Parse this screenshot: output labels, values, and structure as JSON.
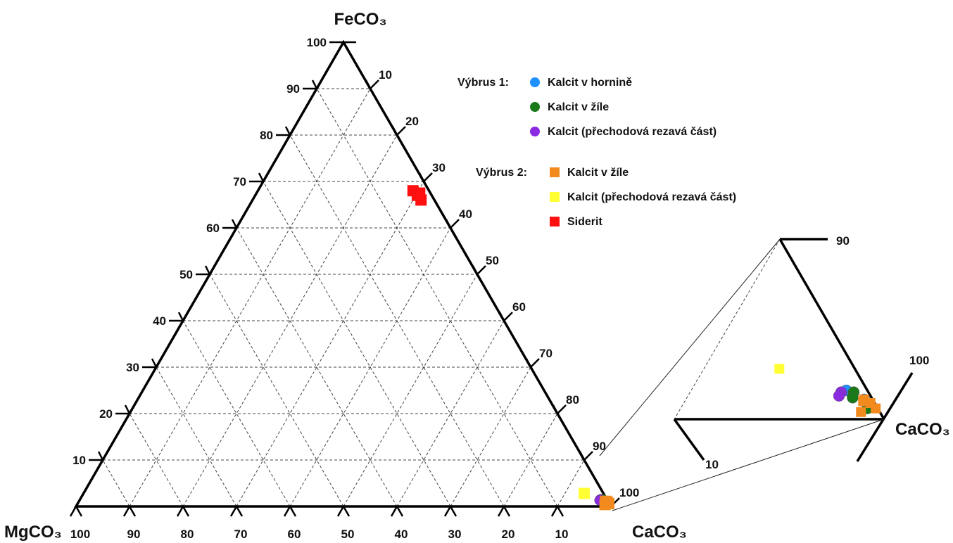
{
  "chart_data": {
    "type": "scatter",
    "subtype": "ternary",
    "vertices": {
      "top": "FeCO₃",
      "left": "MgCO₃",
      "right": "CaCO₃"
    },
    "ticks": [
      10,
      20,
      30,
      40,
      50,
      60,
      70,
      80,
      90,
      100
    ],
    "grid": true,
    "legend_position": "top-right",
    "legend_groups": [
      {
        "label": "Výbrus 1:",
        "entries": [
          "Kalcit v hornině",
          "Kalcit v žíle",
          "Kalcit (přechodová rezavá část)"
        ]
      },
      {
        "label": "Výbrus 2:",
        "entries": [
          "Kalcit v žíle",
          "Kalcit (přechodová rezavá část)",
          "Siderit"
        ]
      }
    ],
    "series": [
      {
        "name": "Kalcit v hornině",
        "group": "Výbrus 1:",
        "marker": "circle",
        "color": "#1e90ff",
        "points": [
          {
            "FeCO3": 1.6,
            "MgCO3": 1.0,
            "CaCO3": 97.4
          },
          {
            "FeCO3": 1.4,
            "MgCO3": 0.8,
            "CaCO3": 97.8
          },
          {
            "FeCO3": 1.1,
            "MgCO3": 0.4,
            "CaCO3": 98.5
          }
        ]
      },
      {
        "name": "Kalcit v žíle",
        "group": "Výbrus 1:",
        "marker": "circle",
        "color": "#1a7a1a",
        "points": [
          {
            "FeCO3": 1.5,
            "MgCO3": 0.7,
            "CaCO3": 97.8
          },
          {
            "FeCO3": 1.2,
            "MgCO3": 0.9,
            "CaCO3": 97.9
          },
          {
            "FeCO3": 0.6,
            "MgCO3": 0.5,
            "CaCO3": 98.9
          }
        ]
      },
      {
        "name": "Kalcit (přechodová rezavá část)",
        "group": "Výbrus 1:",
        "marker": "circle",
        "color": "#8a2be2",
        "points": [
          {
            "FeCO3": 1.5,
            "MgCO3": 1.3,
            "CaCO3": 97.2
          },
          {
            "FeCO3": 1.3,
            "MgCO3": 1.5,
            "CaCO3": 97.2
          }
        ]
      },
      {
        "name": "Kalcit v žíle",
        "group": "Výbrus 2:",
        "marker": "square",
        "color": "#f28a1e",
        "points": [
          {
            "FeCO3": 0.9,
            "MgCO3": 0.2,
            "CaCO3": 98.9
          },
          {
            "FeCO3": 1.0,
            "MgCO3": 0.5,
            "CaCO3": 98.5
          },
          {
            "FeCO3": 0.4,
            "MgCO3": 0.9,
            "CaCO3": 98.7
          },
          {
            "FeCO3": 0.6,
            "MgCO3": 0.1,
            "CaCO3": 99.3
          },
          {
            "FeCO3": 1.1,
            "MgCO3": 0.4,
            "CaCO3": 98.5
          }
        ]
      },
      {
        "name": "Kalcit (přechodová rezavá část)",
        "group": "Výbrus 2:",
        "marker": "square",
        "color": "#ffff33",
        "points": [
          {
            "FeCO3": 2.8,
            "MgCO3": 3.6,
            "CaCO3": 93.6
          }
        ]
      },
      {
        "name": "Siderit",
        "group": "Výbrus 2:",
        "marker": "square",
        "color": "#ff1010",
        "points": [
          {
            "FeCO3": 68.0,
            "MgCO3": 3.0,
            "CaCO3": 29.0
          },
          {
            "FeCO3": 67.0,
            "MgCO3": 2.7,
            "CaCO3": 30.3
          },
          {
            "FeCO3": 66.0,
            "MgCO3": 2.5,
            "CaCO3": 31.5
          },
          {
            "FeCO3": 67.5,
            "MgCO3": 2.0,
            "CaCO3": 30.5
          }
        ]
      }
    ],
    "inset": {
      "tick_labels": [
        "90",
        "100",
        "10"
      ],
      "vertex_label": "CaCO₃"
    }
  },
  "colors": {
    "axis": "#000000",
    "grid": "#444444"
  }
}
